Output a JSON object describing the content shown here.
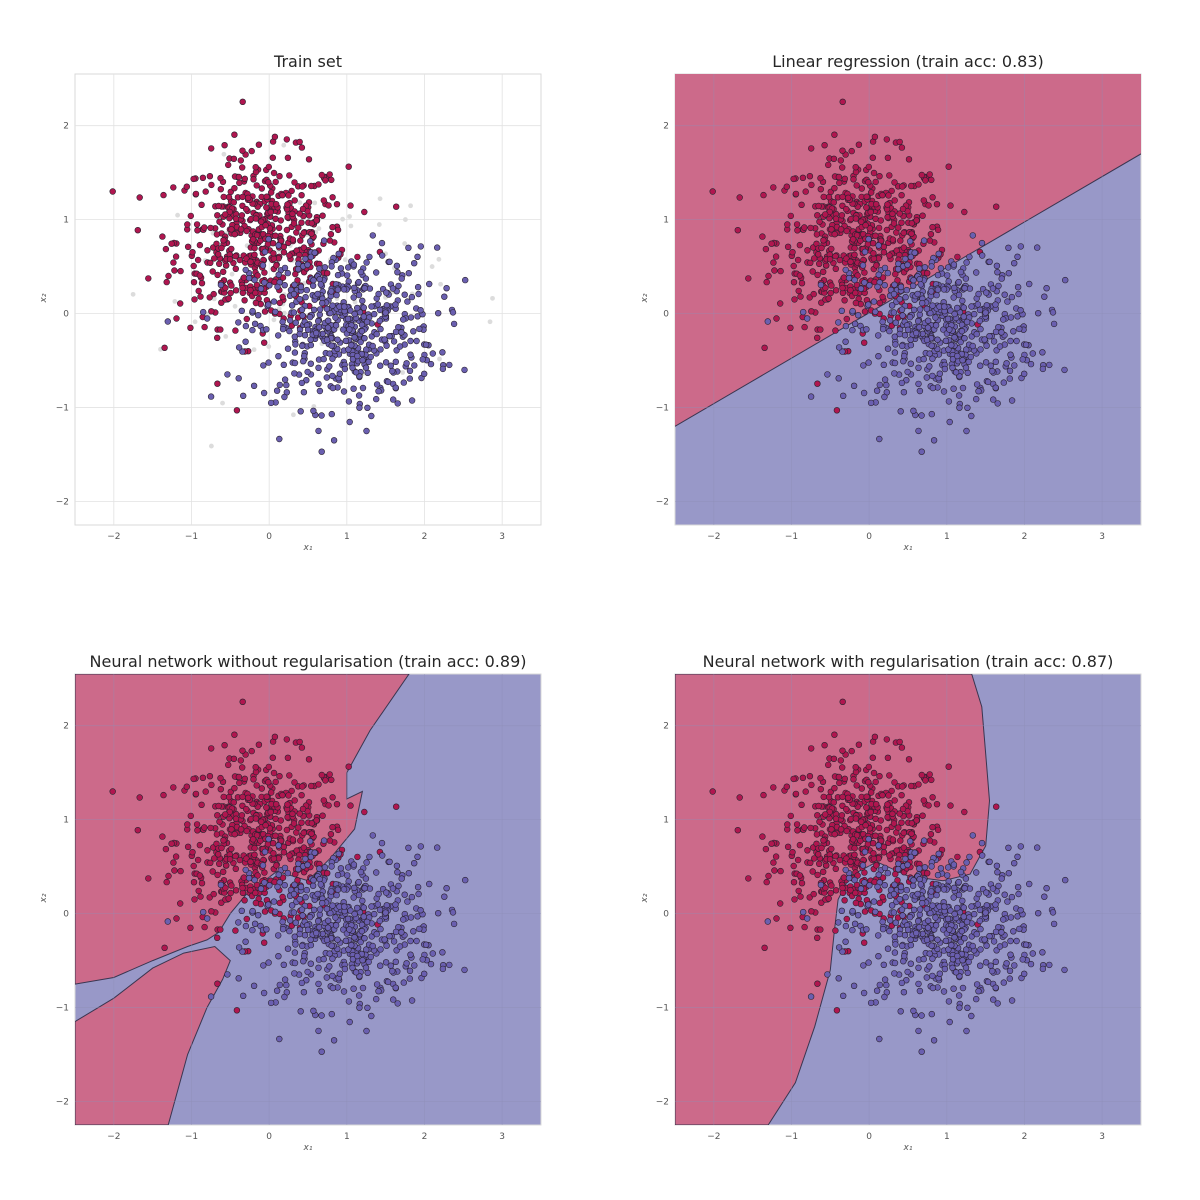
{
  "figure": {
    "colors": {
      "class_red": "#b0164f",
      "class_blue": "#6a5fb0",
      "region_red": "#cc6a8a",
      "region_blue": "#9898c8",
      "grid_light": "#e2e2e2",
      "grid_on_region": "#8f8fb5",
      "axes_edge": "#d9d9d9",
      "point_edge": "#2a2230"
    }
  },
  "panels": [
    {
      "title": "Train set",
      "xlabel": "x₁",
      "ylabel": "x₂"
    },
    {
      "title": "Linear regression (train acc: 0.83)",
      "xlabel": "x₁",
      "ylabel": "x₂"
    },
    {
      "title": "Neural network without regularisation (train acc: 0.89)",
      "xlabel": "x₁",
      "ylabel": "x₂"
    },
    {
      "title": "Neural network with regularisation (train acc: 0.87)",
      "xlabel": "x₁",
      "ylabel": "x₂"
    }
  ],
  "chart_data": [
    {
      "type": "scatter",
      "title": "Train set",
      "xlabel": "x₁",
      "ylabel": "x₂",
      "xlim": [
        -2.5,
        3.5
      ],
      "ylim": [
        -2.25,
        2.55
      ],
      "xticks": [
        -2,
        -1,
        0,
        1,
        2,
        3
      ],
      "yticks": [
        -2,
        -1,
        0,
        1,
        2
      ],
      "grid": true,
      "series": [
        {
          "class": 0,
          "color": "#b0164f",
          "center": [
            -0.1,
            0.78
          ],
          "spread": [
            0.55,
            0.45
          ],
          "n": 560
        },
        {
          "class": 1,
          "color": "#6a5fb0",
          "center": [
            0.95,
            -0.15
          ],
          "spread": [
            0.6,
            0.42
          ],
          "n": 560
        }
      ],
      "faint_points": true
    },
    {
      "type": "scatter",
      "title": "Linear regression (train acc: 0.83)",
      "xlabel": "x₁",
      "ylabel": "x₂",
      "xlim": [
        -2.5,
        3.5
      ],
      "ylim": [
        -2.25,
        2.55
      ],
      "xticks": [
        -2,
        -1,
        0,
        1,
        2,
        3
      ],
      "yticks": [
        -2,
        -1,
        0,
        1,
        2
      ],
      "grid": true,
      "train_acc": 0.83,
      "decision_boundary": {
        "kind": "line",
        "points": [
          [
            -2.5,
            -1.2
          ],
          [
            3.5,
            1.7
          ]
        ]
      }
    },
    {
      "type": "scatter",
      "title": "Neural network without regularisation (train acc: 0.89)",
      "xlabel": "x₁",
      "ylabel": "x₂",
      "xlim": [
        -2.5,
        3.5
      ],
      "ylim": [
        -2.25,
        2.55
      ],
      "xticks": [
        -2,
        -1,
        0,
        1,
        2,
        3
      ],
      "yticks": [
        -2,
        -1,
        0,
        1,
        2
      ],
      "grid": true,
      "train_acc": 0.89,
      "decision_boundary": {
        "kind": "polygons",
        "red_regions": [
          [
            [
              -2.5,
              2.55
            ],
            [
              1.8,
              2.55
            ],
            [
              1.3,
              1.95
            ],
            [
              1.0,
              1.5
            ],
            [
              1.0,
              1.22
            ],
            [
              1.2,
              1.3
            ],
            [
              1.1,
              0.9
            ],
            [
              0.8,
              0.6
            ],
            [
              0.5,
              0.35
            ],
            [
              0.1,
              0.45
            ],
            [
              -0.3,
              0.2
            ],
            [
              -0.5,
              0.0
            ],
            [
              -0.65,
              -0.2
            ],
            [
              -0.8,
              -0.28
            ],
            [
              -1.05,
              -0.35
            ],
            [
              -1.5,
              -0.5
            ],
            [
              -2.0,
              -0.68
            ],
            [
              -2.5,
              -0.75
            ]
          ],
          [
            [
              -2.5,
              -1.15
            ],
            [
              -2.0,
              -0.9
            ],
            [
              -1.5,
              -0.58
            ],
            [
              -1.1,
              -0.42
            ],
            [
              -0.7,
              -0.35
            ],
            [
              -0.5,
              -0.5
            ],
            [
              -0.6,
              -0.7
            ],
            [
              -0.8,
              -1.0
            ],
            [
              -1.05,
              -1.5
            ],
            [
              -1.3,
              -2.25
            ],
            [
              -2.5,
              -2.25
            ]
          ]
        ]
      }
    },
    {
      "type": "scatter",
      "title": "Neural network with regularisation (train acc: 0.87)",
      "xlabel": "x₁",
      "ylabel": "x₂",
      "xlim": [
        -2.5,
        3.5
      ],
      "ylim": [
        -2.25,
        2.55
      ],
      "xticks": [
        -2,
        -1,
        0,
        1,
        2,
        3
      ],
      "yticks": [
        -2,
        -1,
        0,
        1,
        2
      ],
      "grid": true,
      "train_acc": 0.87,
      "decision_boundary": {
        "kind": "polygons",
        "red_regions": [
          [
            [
              -2.5,
              2.55
            ],
            [
              1.32,
              2.55
            ],
            [
              1.45,
              2.2
            ],
            [
              1.5,
              1.7
            ],
            [
              1.55,
              1.2
            ],
            [
              1.5,
              0.72
            ],
            [
              1.3,
              0.42
            ],
            [
              0.95,
              0.35
            ],
            [
              0.5,
              0.4
            ],
            [
              0.1,
              0.55
            ],
            [
              -0.25,
              0.4
            ],
            [
              -0.4,
              0.15
            ],
            [
              -0.45,
              -0.2
            ],
            [
              -0.5,
              -0.6
            ],
            [
              -0.7,
              -1.2
            ],
            [
              -0.95,
              -1.8
            ],
            [
              -1.3,
              -2.25
            ],
            [
              -2.5,
              -2.25
            ]
          ]
        ]
      }
    }
  ]
}
